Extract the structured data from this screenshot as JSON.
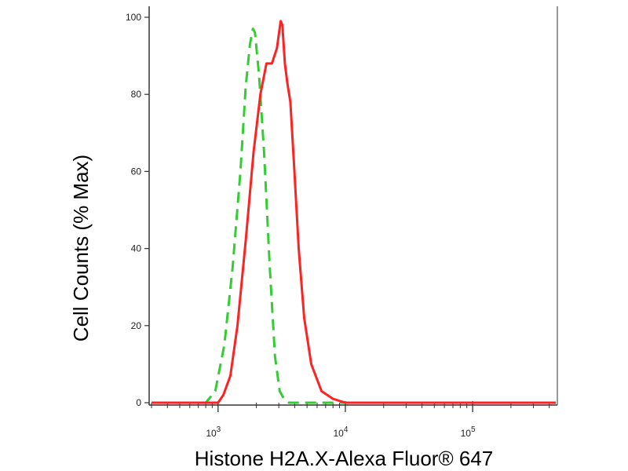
{
  "chart_data": {
    "type": "line",
    "title": "",
    "xlabel": "Histone H2A.X-Alexa Fluor® 647",
    "ylabel": "Cell Counts (% Max)",
    "xscale": "log",
    "xlim": [
      300,
      450000
    ],
    "ylim": [
      0,
      100
    ],
    "grid": false,
    "legend": "none",
    "yticks": [
      {
        "value": 0,
        "label": "0"
      },
      {
        "value": 20,
        "label": "20"
      },
      {
        "value": 40,
        "label": "40"
      },
      {
        "value": 60,
        "label": "60"
      },
      {
        "value": 80,
        "label": "80"
      },
      {
        "value": 100,
        "label": "100"
      }
    ],
    "xticks": [
      {
        "value": 1000,
        "base": "10",
        "exp": "3"
      },
      {
        "value": 10000,
        "base": "10",
        "exp": "4"
      },
      {
        "value": 100000,
        "base": "10",
        "exp": "5"
      }
    ],
    "series": [
      {
        "style": "dashed",
        "color": "#33cc33",
        "x": [
          300,
          800,
          950,
          1120,
          1300,
          1500,
          1650,
          1780,
          1880,
          1950,
          2100,
          2300,
          2550,
          2800,
          3050,
          3300,
          3600,
          4000,
          5000,
          10000,
          450000
        ],
        "y": [
          0,
          0,
          3,
          15,
          35,
          60,
          82,
          93,
          97,
          96,
          85,
          65,
          35,
          12,
          3,
          1,
          0,
          0,
          0,
          0,
          0
        ]
      },
      {
        "style": "solid",
        "color": "#ff2222",
        "x": [
          300,
          1000,
          1100,
          1250,
          1420,
          1650,
          1900,
          2150,
          2400,
          2650,
          2900,
          3100,
          3200,
          3350,
          3500,
          3700,
          3950,
          4300,
          4750,
          5400,
          6500,
          8000,
          10000,
          20000,
          450000
        ],
        "y": [
          0,
          0,
          2,
          7,
          20,
          42,
          65,
          80,
          88,
          88,
          92,
          99,
          98,
          88,
          83,
          78,
          62,
          40,
          22,
          10,
          3,
          1,
          0,
          0,
          0
        ]
      }
    ]
  }
}
